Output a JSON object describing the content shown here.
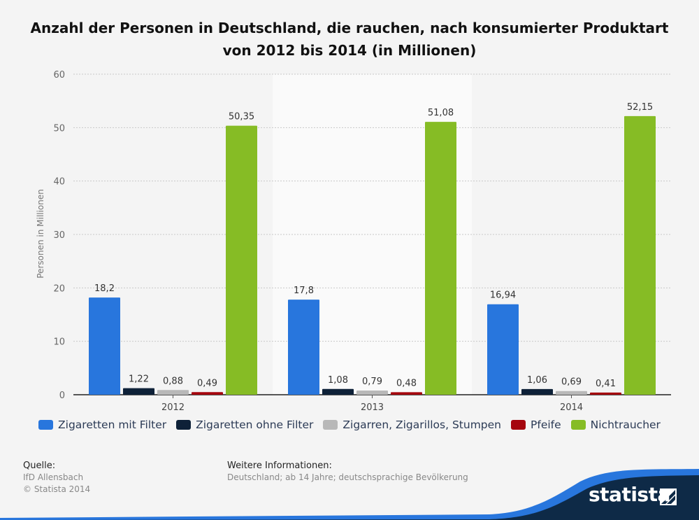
{
  "title_line1": "Anzahl der Personen in Deutschland, die rauchen, nach konsumierter Produktart",
  "title_line2": "von 2012 bis 2014 (in Millionen)",
  "chart_data": {
    "type": "bar",
    "categories": [
      "2012",
      "2013",
      "2014"
    ],
    "series": [
      {
        "name": "Zigaretten mit Filter",
        "color": "#2876dd",
        "values": [
          18.2,
          17.8,
          16.94
        ],
        "labels": [
          "18,2",
          "17,8",
          "16,94"
        ]
      },
      {
        "name": "Zigaretten ohne Filter",
        "color": "#0e2138",
        "values": [
          1.22,
          1.08,
          1.06
        ],
        "labels": [
          "1,22",
          "1,08",
          "1,06"
        ]
      },
      {
        "name": "Zigarren, Zigarillos, Stumpen",
        "color": "#b8b8b8",
        "values": [
          0.88,
          0.79,
          0.69
        ],
        "labels": [
          "0,88",
          "0,79",
          "0,69"
        ]
      },
      {
        "name": "Pfeife",
        "color": "#a5060e",
        "values": [
          0.49,
          0.48,
          0.41
        ],
        "labels": [
          "0,49",
          "0,48",
          "0,41"
        ]
      },
      {
        "name": "Nichtraucher",
        "color": "#86bc25",
        "values": [
          50.35,
          51.08,
          52.15
        ],
        "labels": [
          "50,35",
          "51,08",
          "52,15"
        ]
      }
    ],
    "ylabel": "Personen in Millionen",
    "ylim": [
      0,
      60
    ],
    "yticks": [
      0,
      10,
      20,
      30,
      40,
      50,
      60
    ],
    "grid": true,
    "legend_position": "bottom"
  },
  "source": {
    "heading": "Quelle:",
    "line1": "IfD Allensbach",
    "line2": "© Statista 2014"
  },
  "info": {
    "heading": "Weitere Informationen:",
    "text": "Deutschland; ab 14 Jahre; deutschsprachige Bevölkerung"
  },
  "brand": {
    "name": "statista",
    "color": "#0e2a47",
    "accent": "#2876dd"
  }
}
